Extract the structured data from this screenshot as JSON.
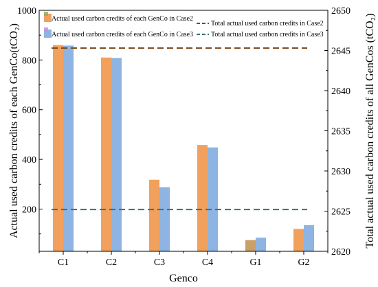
{
  "chart_data": {
    "type": "bar",
    "categories": [
      "C1",
      "C2",
      "C3",
      "C4",
      "G1",
      "G2"
    ],
    "series": [
      {
        "name": "Actual used carbon credits of each GenCo in Case2",
        "axis": "left",
        "values": [
          860,
          810,
          318,
          458,
          75,
          120
        ],
        "colors": [
          "#f2a05d",
          "#f2a05d",
          "#f2a05d",
          "#f2a05d",
          "#c9a066",
          "#f2a05d"
        ]
      },
      {
        "name": "Actual used carbon credits of each GenCo in Case3",
        "axis": "left",
        "values": [
          858,
          808,
          288,
          448,
          85,
          135
        ],
        "colors": [
          "#8db4e2",
          "#8db4e2",
          "#8db4e2",
          "#8db4e2",
          "#8db4e2",
          "#8db4e2"
        ]
      }
    ],
    "lines": [
      {
        "name": "Total actual used carbon credits in Case2",
        "axis": "right",
        "value": 2645.3,
        "color": "#7b4a1e"
      },
      {
        "name": "Total actual used carbon credits  in Case3",
        "axis": "right",
        "value": 2625.2,
        "color": "#3f6f73"
      }
    ],
    "xlabel": "Genco",
    "ylabel_left": "Actual used carbon credits of each GenCo(tCO₂)",
    "ylabel_right": "Total actual used carbon credits of all GenCos (tCO₂)",
    "ylim_left": [
      30,
      1000
    ],
    "ylim_right": [
      2620,
      2650
    ],
    "yticks_left": [
      200,
      400,
      600,
      800,
      1000
    ],
    "yticks_right": [
      2620,
      2625,
      2630,
      2635,
      2640,
      2645,
      2650
    ],
    "legend_position": "top",
    "grid": false
  }
}
